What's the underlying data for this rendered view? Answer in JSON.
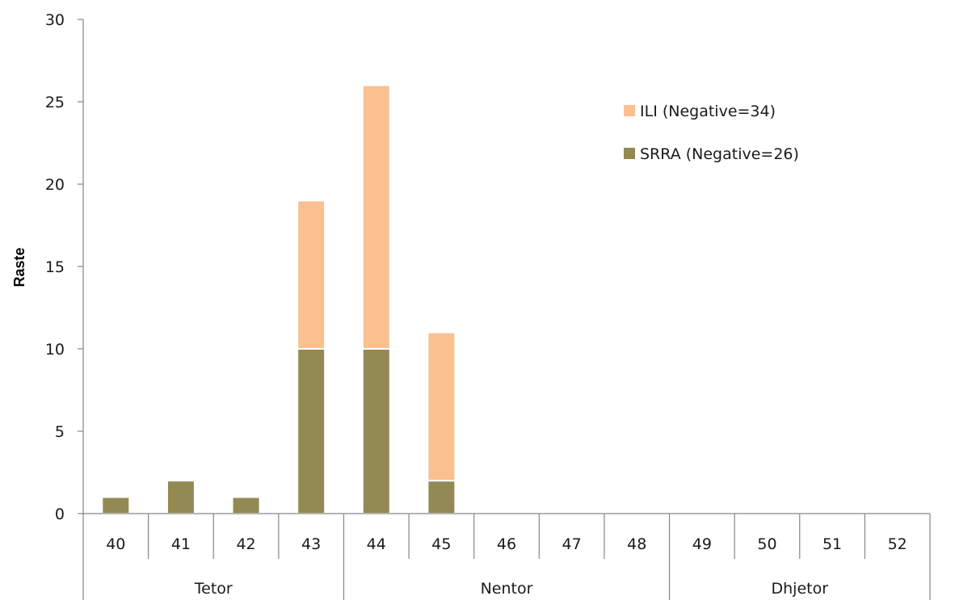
{
  "chart_data": {
    "type": "bar",
    "stacked": true,
    "categories": [
      "40",
      "41",
      "42",
      "43",
      "44",
      "45",
      "46",
      "47",
      "48",
      "49",
      "50",
      "51",
      "52"
    ],
    "groups": [
      {
        "label": "Tetor",
        "categories": [
          "40",
          "41",
          "42",
          "43"
        ]
      },
      {
        "label": "Nentor",
        "categories": [
          "44",
          "45",
          "46",
          "47",
          "48"
        ]
      },
      {
        "label": "Dhjetor",
        "categories": [
          "49",
          "50",
          "51",
          "52"
        ]
      }
    ],
    "series": [
      {
        "name": "SRRA (Negative=26)",
        "color": "#938953",
        "values": [
          1,
          2,
          1,
          10,
          10,
          2,
          0,
          0,
          0,
          0,
          0,
          0,
          0
        ]
      },
      {
        "name": "ILI (Negative=34)",
        "color": "#FAC090",
        "values": [
          0,
          0,
          0,
          9,
          16,
          9,
          0,
          0,
          0,
          0,
          0,
          0,
          0
        ]
      }
    ],
    "ylabel": "Raste",
    "ylim": [
      0,
      30
    ],
    "yticks": [
      0,
      5,
      10,
      15,
      20,
      25,
      30
    ],
    "legend_position": "top-right",
    "grid": false
  }
}
